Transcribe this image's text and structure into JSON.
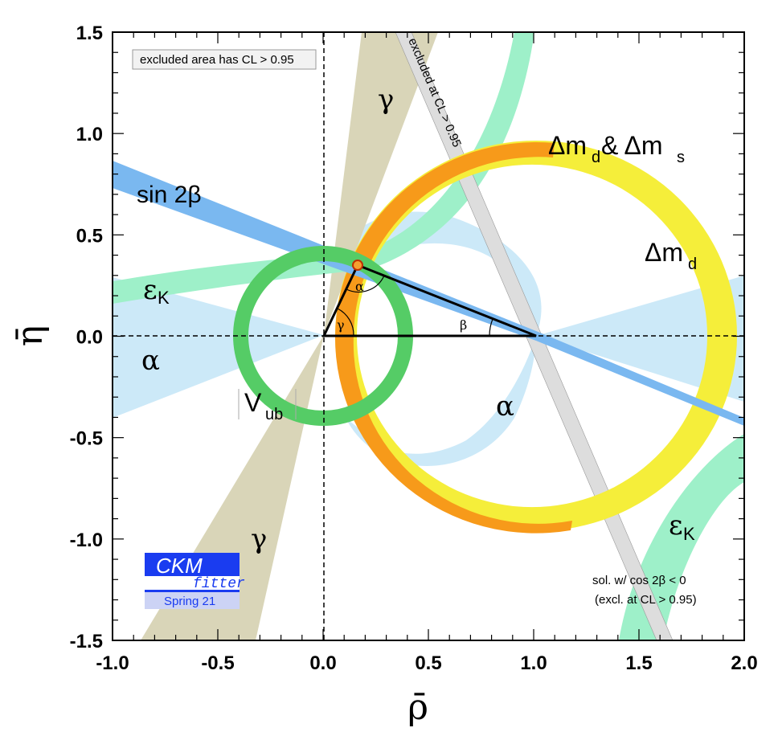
{
  "chart_data": {
    "type": "scatter",
    "xlabel": "ρ̄",
    "ylabel": "η̄",
    "xlim": [
      -1.0,
      2.0
    ],
    "ylim": [
      -1.5,
      1.5
    ],
    "x_ticks": [
      "-1.0",
      "-0.5",
      "0.0",
      "0.5",
      "1.0",
      "1.5",
      "2.0"
    ],
    "y_ticks": [
      "1.5",
      "1.0",
      "0.5",
      "0.0",
      "-0.5",
      "-1.0",
      "-1.5"
    ],
    "x_tick_values": [
      -1.0,
      -0.5,
      0.0,
      0.5,
      1.0,
      1.5,
      2.0
    ],
    "y_tick_values": [
      1.5,
      1.0,
      0.5,
      0.0,
      -0.5,
      -1.0,
      -1.5
    ],
    "grid": false,
    "apex": {
      "rho": 0.16,
      "eta": 0.35
    },
    "colors": {
      "sin2beta": "#7ab8f0",
      "vub": "#55cc66",
      "dmd": "#f5ee3a",
      "dms": "#f79a1a",
      "alpha": "#cce9f8",
      "gamma": "#d9d5b8",
      "epsk": "#9ef0c9",
      "cos2beta": "#dddddd",
      "logo": "#1a3cf0"
    },
    "annotations": {
      "legend_box": "excluded area has CL > 0.95",
      "excluded_band": "excluded at CL > 0.95",
      "sin2beta": "sin 2β",
      "eps_k_upper": "ε",
      "eps_k_upper_sub": "K",
      "alpha_left": "α",
      "gamma_top": "γ",
      "dm_pair_main": "Δm",
      "dm_pair_d": "d",
      "dm_pair_mid": " & Δm",
      "dm_pair_s": "s",
      "dmd_main": "Δm",
      "dmd_sub": "d",
      "vub_main": "V",
      "vub_sub": "ub",
      "alpha_bottom": "α",
      "gamma_bottom": "γ",
      "eps_k_lower": "ε",
      "eps_k_lower_sub": "K",
      "sol_line1": "sol. w/ cos 2β < 0",
      "sol_line2": "(excl. at CL > 0.95)",
      "tri_alpha": "α",
      "tri_beta": "β",
      "tri_gamma": "γ"
    },
    "logo": {
      "line1": "CKM",
      "line2": "fitter",
      "line3": "Spring 21"
    }
  }
}
